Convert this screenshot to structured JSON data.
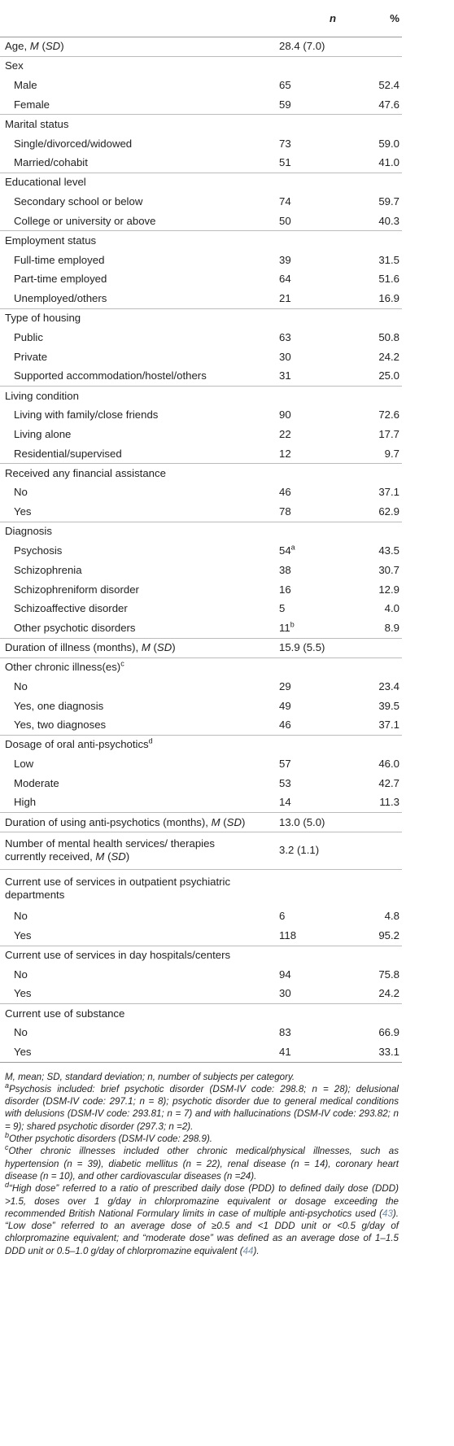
{
  "header": {
    "n_label": "n",
    "pct_label": "%"
  },
  "rows": [
    {
      "type": "cat",
      "label": "Age, ",
      "label_i": "M",
      "label_t": " (",
      "label_i2": "SD",
      "label_t2": ")",
      "n": "28.4 (7.0)",
      "p": ""
    },
    {
      "type": "cat",
      "label": "Sex",
      "n": "",
      "p": ""
    },
    {
      "type": "sub",
      "label": "Male",
      "n": "65",
      "p": "52.4"
    },
    {
      "type": "sub",
      "label": "Female",
      "n": "59",
      "p": "47.6"
    },
    {
      "type": "cat",
      "label": "Marital status",
      "n": "",
      "p": ""
    },
    {
      "type": "sub",
      "label": "Single/divorced/widowed",
      "n": "73",
      "p": "59.0"
    },
    {
      "type": "sub",
      "label": "Married/cohabit",
      "n": "51",
      "p": "41.0"
    },
    {
      "type": "cat",
      "label": "Educational level",
      "n": "",
      "p": ""
    },
    {
      "type": "sub",
      "label": "Secondary school or below",
      "n": "74",
      "p": "59.7"
    },
    {
      "type": "sub",
      "label": "College or university or above",
      "n": "50",
      "p": "40.3"
    },
    {
      "type": "cat",
      "label": "Employment status",
      "n": "",
      "p": ""
    },
    {
      "type": "sub",
      "label": "Full-time employed",
      "n": "39",
      "p": "31.5"
    },
    {
      "type": "sub",
      "label": "Part-time employed",
      "n": "64",
      "p": "51.6"
    },
    {
      "type": "sub",
      "label": "Unemployed/others",
      "n": "21",
      "p": "16.9"
    },
    {
      "type": "cat",
      "label": "Type of housing",
      "n": "",
      "p": ""
    },
    {
      "type": "sub",
      "label": "Public",
      "n": "63",
      "p": "50.8"
    },
    {
      "type": "sub",
      "label": "Private",
      "n": "30",
      "p": "24.2"
    },
    {
      "type": "sub",
      "label": "Supported accommodation/hostel/others",
      "n": "31",
      "p": "25.0"
    },
    {
      "type": "cat",
      "label": "Living condition",
      "n": "",
      "p": ""
    },
    {
      "type": "sub",
      "label": "Living with family/close friends",
      "n": "90",
      "p": "72.6"
    },
    {
      "type": "sub",
      "label": "Living alone",
      "n": "22",
      "p": "17.7"
    },
    {
      "type": "sub",
      "label": "Residential/supervised",
      "n": "12",
      "p": "9.7"
    },
    {
      "type": "cat",
      "label": "Received any financial assistance",
      "n": "",
      "p": ""
    },
    {
      "type": "sub",
      "label": "No",
      "n": "46",
      "p": "37.1"
    },
    {
      "type": "sub",
      "label": "Yes",
      "n": "78",
      "p": "62.9"
    },
    {
      "type": "cat",
      "label": "Diagnosis",
      "n": "",
      "p": ""
    },
    {
      "type": "sub",
      "label": "Psychosis",
      "n": "54",
      "n_sup": "a",
      "p": "43.5"
    },
    {
      "type": "sub",
      "label": "Schizophrenia",
      "n": "38",
      "p": "30.7"
    },
    {
      "type": "sub",
      "label": "Schizophreniform disorder",
      "n": "16",
      "p": "12.9"
    },
    {
      "type": "sub",
      "label": "Schizoaffective disorder",
      "n": "5",
      "p": "4.0"
    },
    {
      "type": "sub",
      "label": "Other psychotic disorders",
      "n": "11",
      "n_sup": "b",
      "p": "8.9"
    },
    {
      "type": "cat",
      "label": "Duration of illness (months), ",
      "label_i": "M",
      "label_t": " (",
      "label_i2": "SD",
      "label_t2": ")",
      "n": "15.9 (5.5)",
      "p": ""
    },
    {
      "type": "cat",
      "label": "Other chronic illness(es)",
      "label_sup": "c",
      "n": "",
      "p": ""
    },
    {
      "type": "sub",
      "label": "No",
      "n": "29",
      "p": "23.4"
    },
    {
      "type": "sub",
      "label": "Yes, one diagnosis",
      "n": "49",
      "p": "39.5"
    },
    {
      "type": "sub",
      "label": "Yes, two diagnoses",
      "n": "46",
      "p": "37.1"
    },
    {
      "type": "cat",
      "label": "Dosage of oral anti-psychotics",
      "label_sup": "d",
      "n": "",
      "p": ""
    },
    {
      "type": "sub",
      "label": "Low",
      "n": "57",
      "p": "46.0"
    },
    {
      "type": "sub",
      "label": "Moderate",
      "n": "53",
      "p": "42.7"
    },
    {
      "type": "sub",
      "label": "High",
      "n": "14",
      "p": "11.3"
    },
    {
      "type": "cat",
      "label": "Duration of using anti-psychotics (months), ",
      "label_i": "M",
      "label_t": " (",
      "label_i2": "SD",
      "label_t2": ")",
      "n": "13.0 (5.0)",
      "p": ""
    },
    {
      "type": "cat2",
      "label": "Number of mental health services/ therapies currently received, ",
      "label_i": "M",
      "label_t": " (",
      "label_i2": "SD",
      "label_t2": ")",
      "n": "3.2 (1.1)",
      "p": ""
    },
    {
      "type": "cat2",
      "label": "Current use of services in outpatient psychiatric departments",
      "n": "",
      "p": ""
    },
    {
      "type": "sub",
      "label": "No",
      "n": "6",
      "p": "4.8"
    },
    {
      "type": "sub",
      "label": "Yes",
      "n": "118",
      "p": "95.2"
    },
    {
      "type": "cat",
      "label": "Current use of services in day hospitals/centers",
      "n": "",
      "p": ""
    },
    {
      "type": "sub",
      "label": "No",
      "n": "94",
      "p": "75.8"
    },
    {
      "type": "sub",
      "label": "Yes",
      "n": "30",
      "p": "24.2"
    },
    {
      "type": "cat",
      "label": "Current use of substance",
      "n": "",
      "p": ""
    },
    {
      "type": "sub",
      "label": "No",
      "n": "83",
      "p": "66.9"
    },
    {
      "type": "sub",
      "label": "Yes",
      "n": "41",
      "p": "33.1"
    }
  ],
  "notes": {
    "abbrev": "M, mean; SD, standard deviation; n, number of subjects per category.",
    "a_mark": "a",
    "a_text": "Psychosis included: brief psychotic disorder (DSM-IV code: 298.8; n = 28); delusional disorder (DSM-IV code: 297.1; n = 8); psychotic disorder due to general medical conditions with delusions (DSM-IV code: 293.81; n = 7) and with hallucinations (DSM-IV code: 293.82; n = 9); shared psychotic disorder (297.3; n =2).",
    "b_mark": "b",
    "b_text": "Other psychotic disorders (DSM-IV code: 298.9).",
    "c_mark": "c",
    "c_text": "Other chronic illnesses included other chronic medical/physical illnesses, such as hypertension (n = 39), diabetic mellitus (n = 22), renal disease (n = 14), coronary heart disease (n = 10), and other cardiovascular diseases (n =24).",
    "d_mark": "d",
    "d_text_1": "“High dose” referred to a ratio of prescribed daily dose (PDD) to defined daily dose (DDD) >1.5, doses over 1 g/day in chlorpromazine equivalent or dosage exceeding the recommended British National Formulary limits in case of multiple anti-psychotics used (",
    "d_ref_1": "43",
    "d_text_2": "). “Low dose” referred to an average dose of ≥0.5 and <1 DDD unit or <0.5 g/day of chlorpromazine equivalent; and “moderate dose” was defined as an average dose of 1–1.5 DDD unit or 0.5–1.0 g/day of chlorpromazine equivalent (",
    "d_ref_2": "44",
    "d_text_3": ")."
  }
}
